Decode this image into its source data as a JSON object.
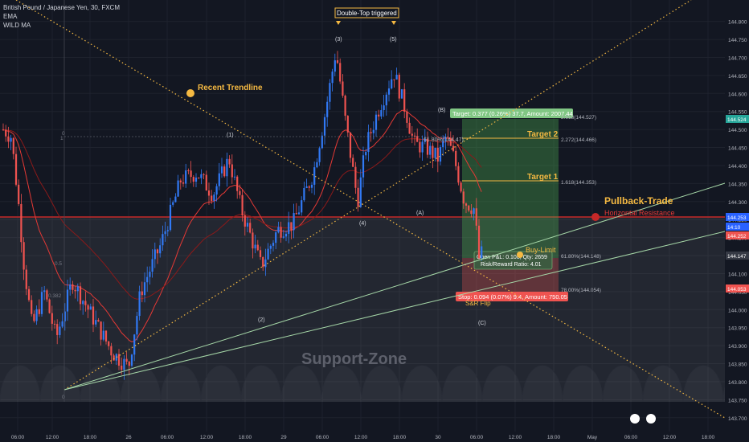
{
  "legend": {
    "symbol": "British Pound / Japanese Yen, 30, FXCM",
    "ema": "EMA",
    "wild_ma": "WILD MA"
  },
  "chart_data": {
    "type": "candlestick",
    "ylim": [
      143.695,
      144.855
    ],
    "y_ticks": [
      "144.800",
      "144.750",
      "144.700",
      "144.650",
      "144.600",
      "144.550",
      "144.500",
      "144.450",
      "144.400",
      "144.350",
      "144.300",
      "144.250",
      "144.200",
      "144.150",
      "144.100",
      "144.050",
      "144.000",
      "143.950",
      "143.900",
      "143.850",
      "143.800",
      "143.750",
      "143.700"
    ],
    "x_ticks": [
      "06:00",
      "12:00",
      "18:00",
      "26",
      "06:00",
      "12:00",
      "18:00",
      "29",
      "06:00",
      "12:00",
      "18:00",
      "30",
      "06:00",
      "12:00",
      "18:00",
      "May",
      "06:00",
      "12:00",
      "18:00"
    ],
    "price_tags": [
      {
        "text": "144.524",
        "bg": "#26a69a"
      },
      {
        "text": "144.253",
        "bg": "#2962ff"
      },
      {
        "text": "14:10",
        "bg": "#2962ff"
      },
      {
        "text": "144.252",
        "bg": "#ef5350"
      },
      {
        "text": "144.147",
        "bg": "#363a45"
      },
      {
        "text": "144.053",
        "bg": "#ef5350"
      }
    ],
    "annotations": {
      "double_top": "Double-Top triggered",
      "recent_trendline": "Recent Trendline",
      "pullback_trade": "Pullback-Trade",
      "horizontal_resistance": "Horizontal Resistance",
      "target1": "Target 1",
      "target2": "Target 2",
      "buy_limit": "Buy-Limit",
      "support_zone": "Support-Zone",
      "sr_flip": "S&R Flip",
      "wave_3": "(3)",
      "wave_5": "(5)",
      "wave_1": "(1)",
      "wave_2": "(2)",
      "wave_4": "(4)",
      "wave_A": "(A)",
      "wave_B": "(B)",
      "wave_C": "(C)",
      "fib_2618": "2.618(144.527)",
      "fib_2272": "2.272(144.466)",
      "fib_1618": "1.618(144.353)",
      "fib_618": "61.80%(144.148)",
      "fib_7800": "78.00%(144.054)",
      "fib_618_left": "61.80%(144.47)",
      "fib_0": "0",
      "fib_1": "1",
      "fib_0_5": "0.5",
      "fib_0_382": "0.382",
      "fib_0_small": "0"
    },
    "position": {
      "target_box": "Target: 0.377 (0.26%) 37.7, Amount: 2007.44",
      "stop_box": "Stop: 0.094 (0.07%) 9.4, Amount: 750.05",
      "info1": "Open P&L: 0.108, Qty: 2659",
      "info2": "Risk/Reward Ratio: 4.01"
    },
    "colors": {
      "up": "#3179f5",
      "down": "#ef5350",
      "ema": "#e53935",
      "wild": "#8b1a1a",
      "accent": "#f5b942",
      "resistance": "#c62828",
      "green_line": "#a5d6a7"
    }
  }
}
